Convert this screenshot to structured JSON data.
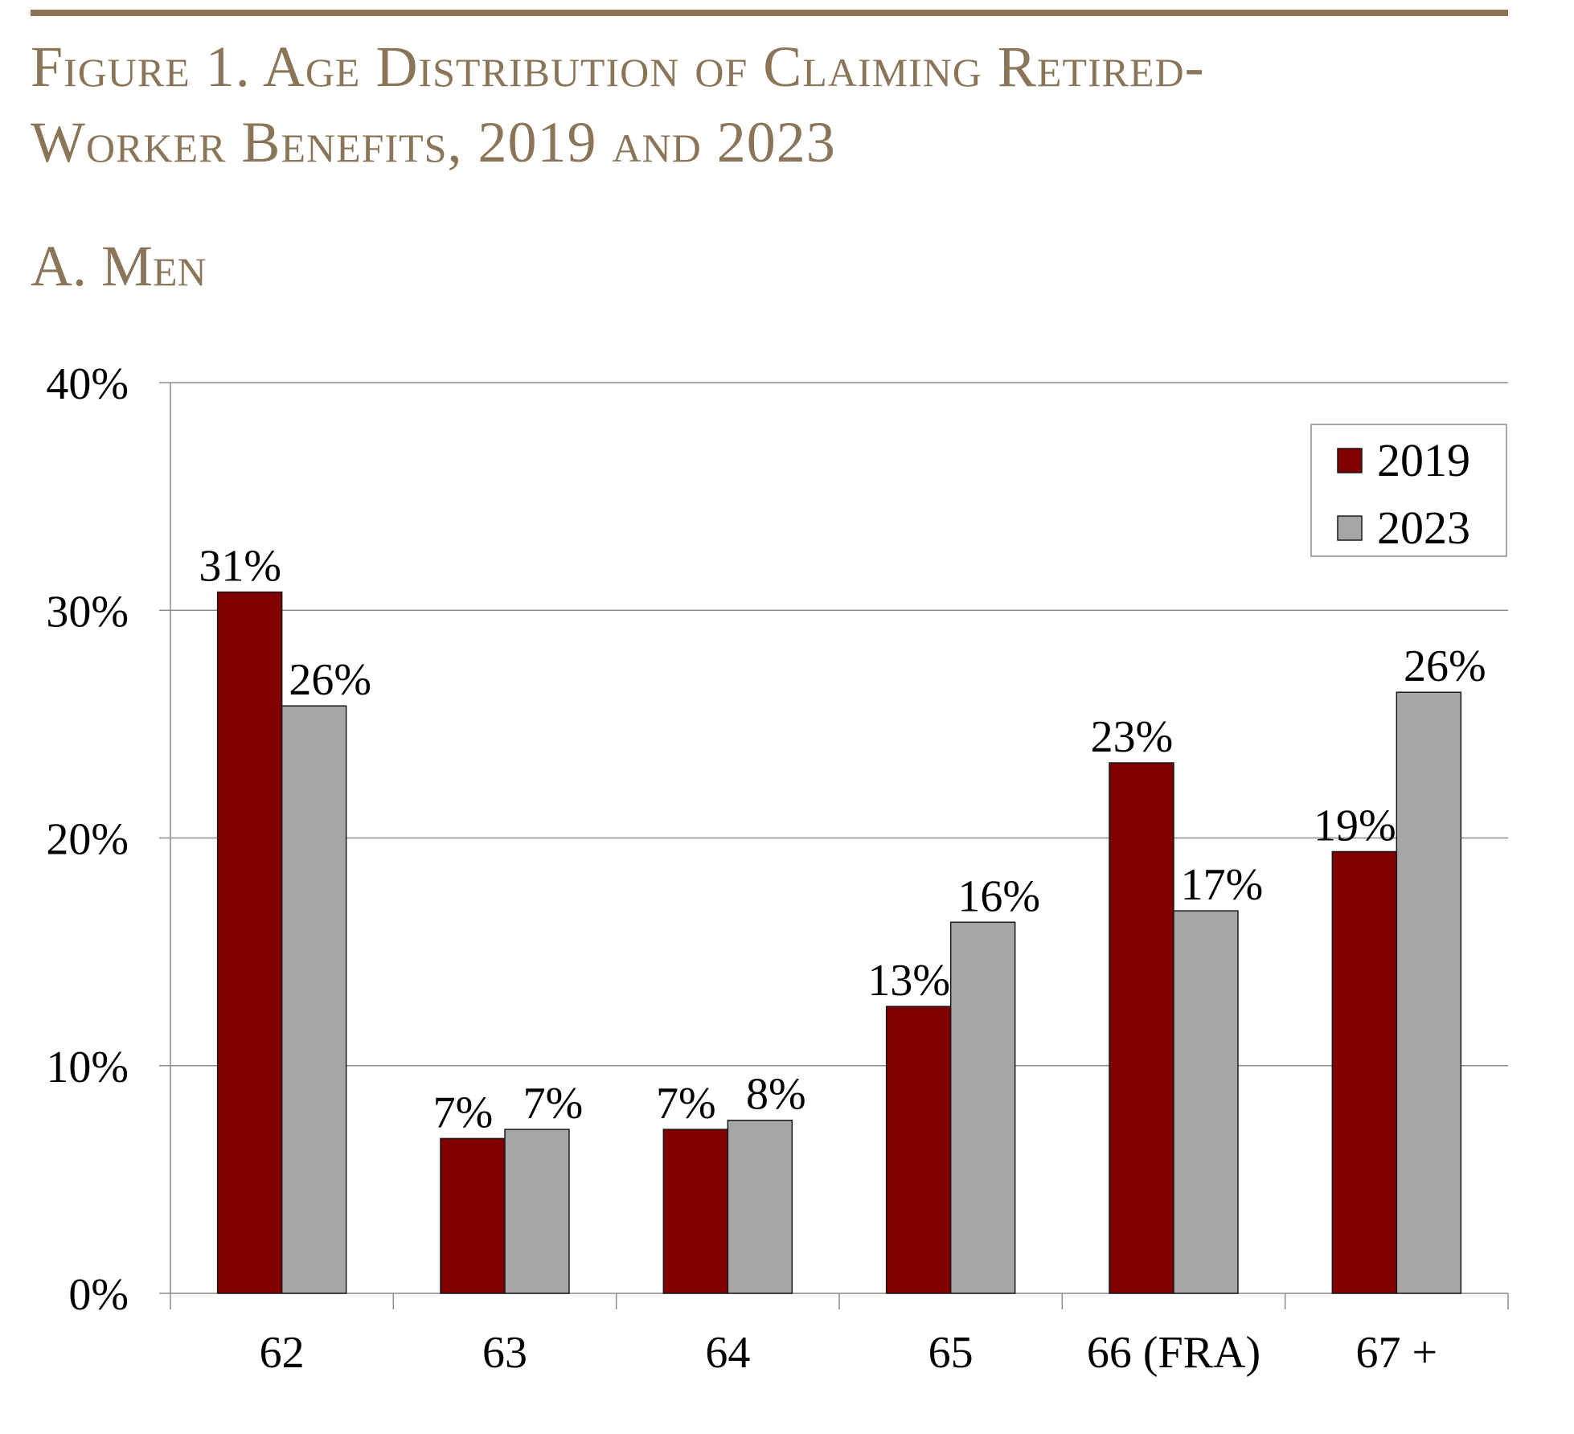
{
  "figure": {
    "title_line1": "Figure 1. Age Distribution of Claiming Retired-",
    "title_line2": "Worker Benefits, 2019 and 2023",
    "panel_title": "A. Men",
    "rule_color": "#8b7558",
    "title_color": "#8b7558"
  },
  "chart_data": {
    "type": "bar",
    "title": "A. Men",
    "xlabel": "",
    "ylabel": "",
    "categories": [
      "62",
      "63",
      "64",
      "65",
      "66 (FRA)",
      "67 +"
    ],
    "series": [
      {
        "name": "2019",
        "color": "#800000",
        "values": [
          30.8,
          6.8,
          7.2,
          12.6,
          23.3,
          19.4
        ],
        "labels": [
          "31%",
          "7%",
          "7%",
          "13%",
          "23%",
          "19%"
        ]
      },
      {
        "name": "2023",
        "color": "#a6a6a6",
        "values": [
          25.8,
          7.2,
          7.6,
          16.3,
          16.8,
          26.4
        ],
        "labels": [
          "26%",
          "7%",
          "8%",
          "16%",
          "17%",
          "26%"
        ]
      }
    ],
    "ylim": [
      0,
      40
    ],
    "yticks": [
      0,
      10,
      20,
      30,
      40
    ],
    "ytick_labels": [
      "0%",
      "10%",
      "20%",
      "30%",
      "40%"
    ],
    "grid": true,
    "legend_position": "top-right"
  }
}
